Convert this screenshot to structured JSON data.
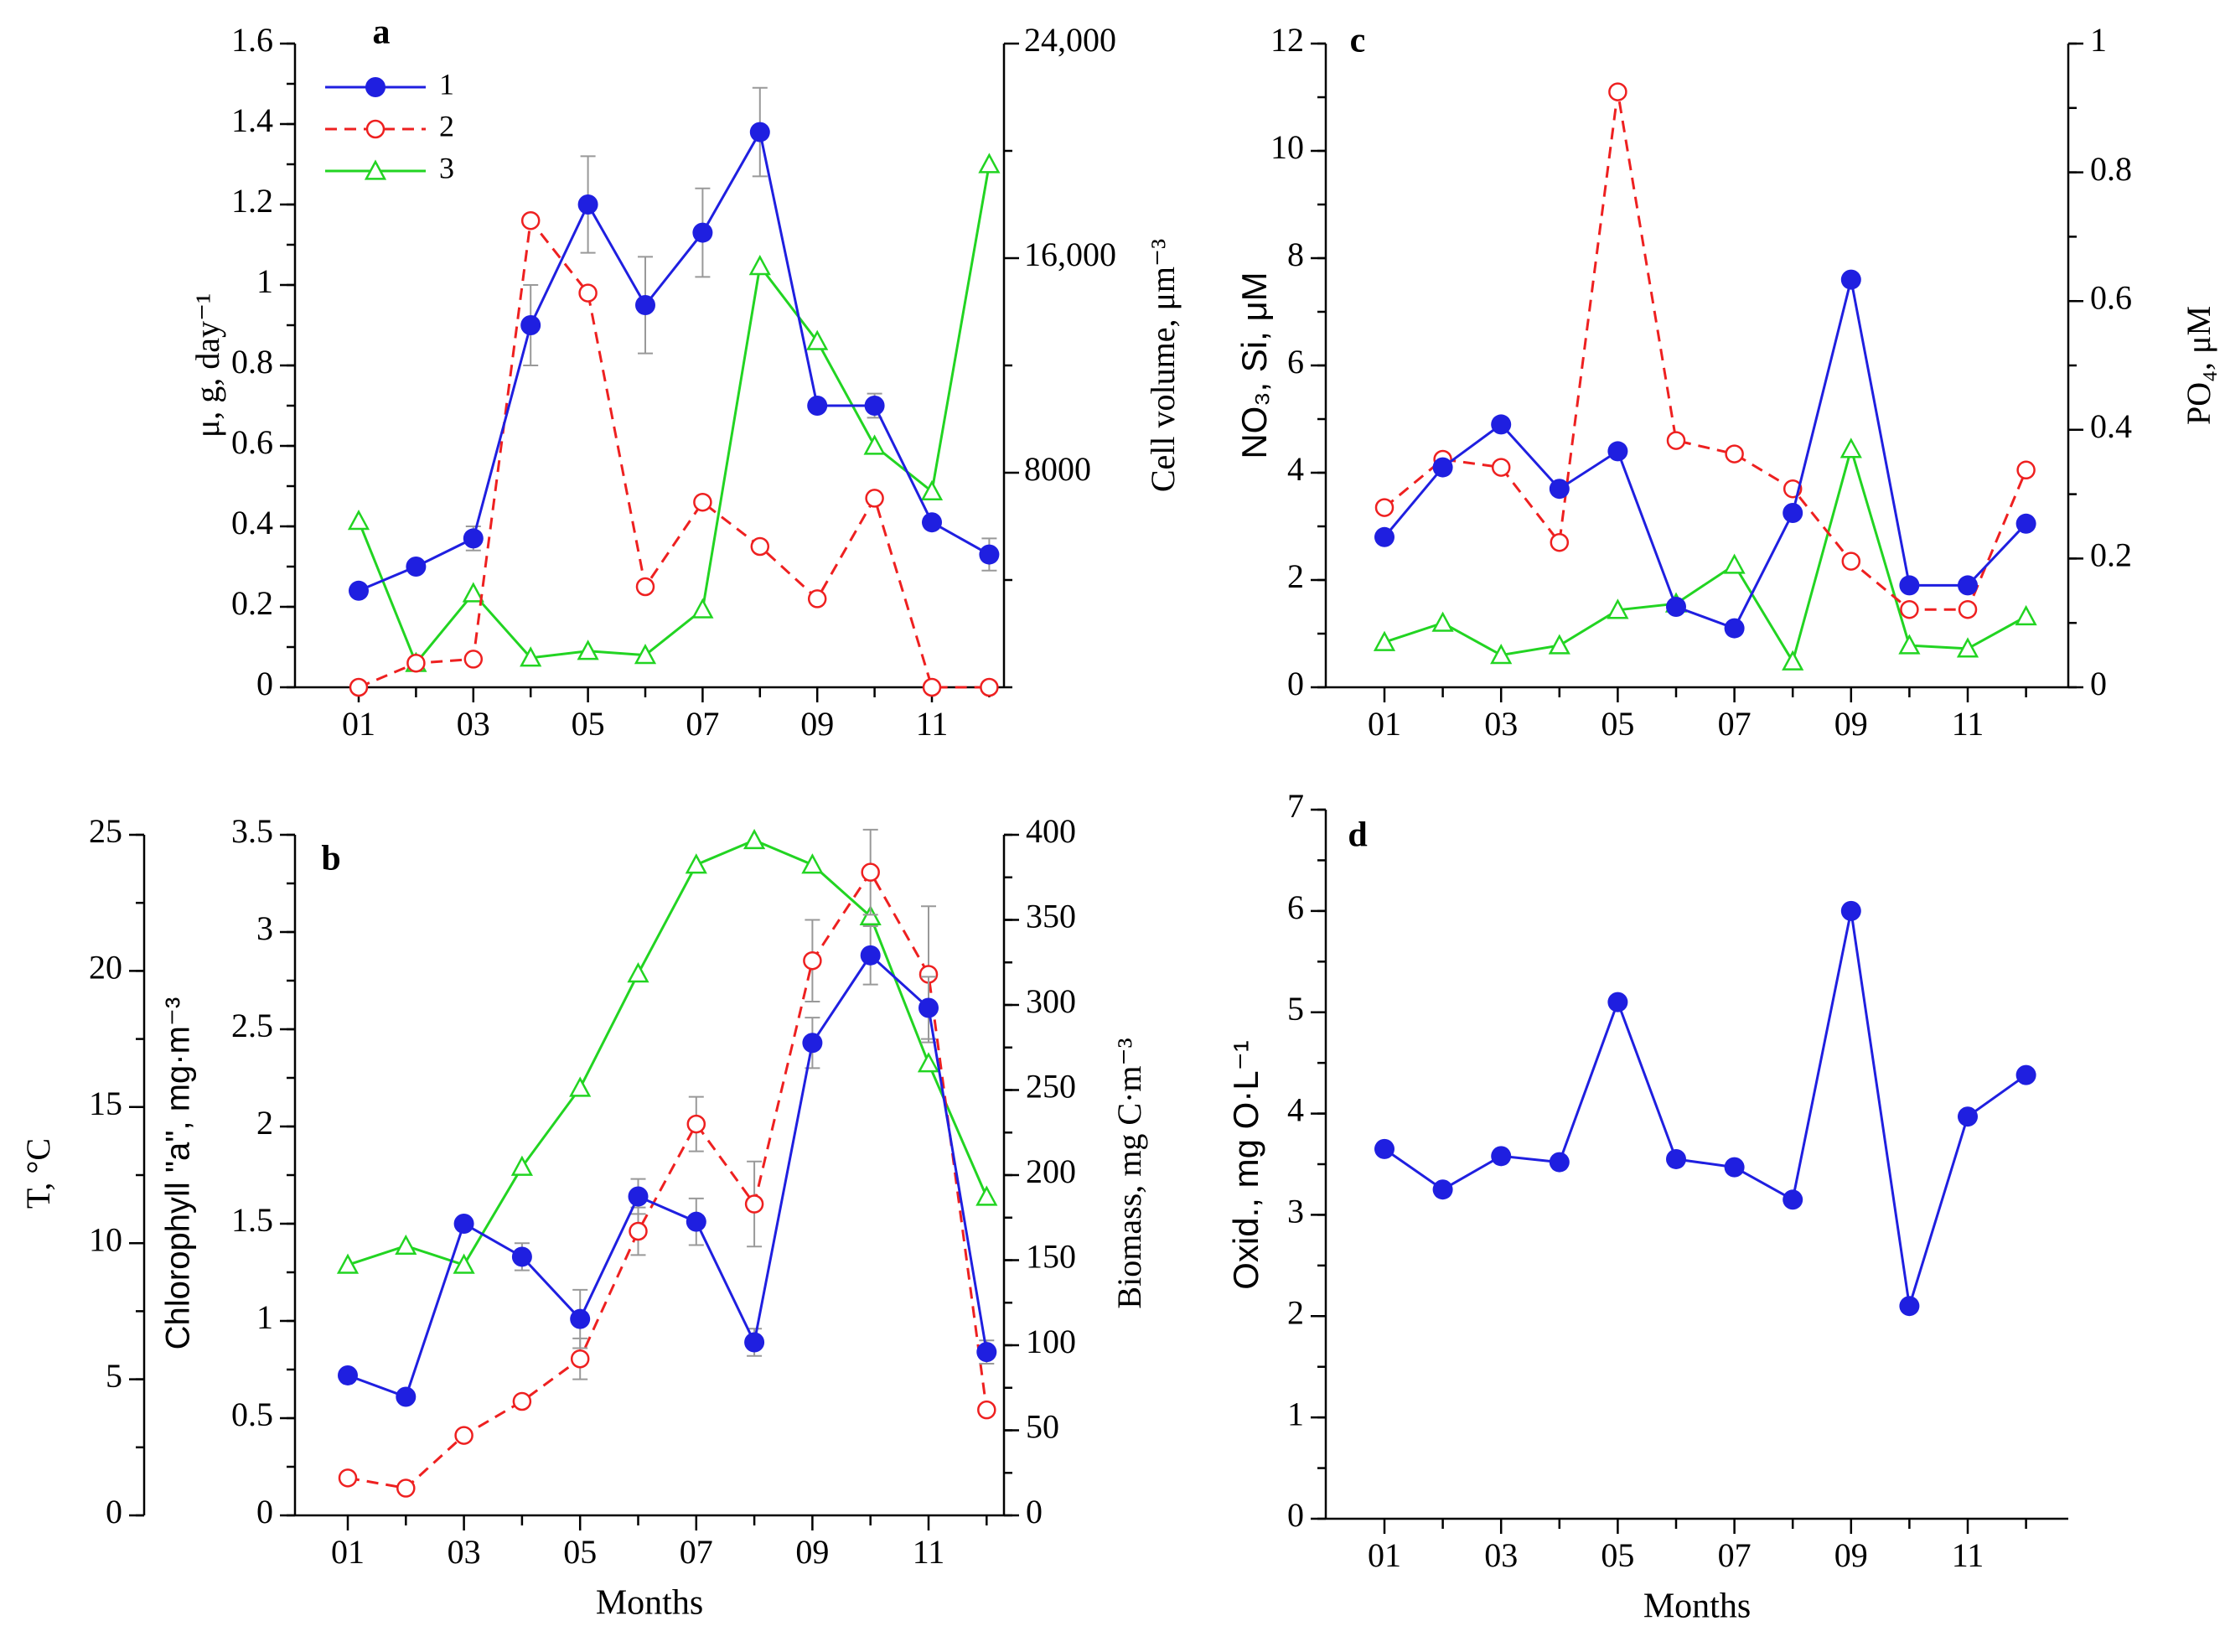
{
  "figure": {
    "panels": [
      "a",
      "b",
      "c",
      "d"
    ]
  },
  "legend": {
    "labels": [
      "1",
      "2",
      "3"
    ]
  },
  "colors": {
    "s1": "#1f1fe0",
    "s2": "#ee2020",
    "s3": "#22d422",
    "axis": "#000000",
    "error": "#999999"
  },
  "chart_data": [
    {
      "panel": "a",
      "type": "line",
      "months": [
        "01",
        "02",
        "03",
        "04",
        "05",
        "06",
        "07",
        "08",
        "09",
        "10",
        "11",
        "12"
      ],
      "xticklabels": [
        "01",
        "03",
        "05",
        "07",
        "09",
        "11"
      ],
      "xlabel": "",
      "left_axis": {
        "label": "μ, g, day⁻¹",
        "ylim": [
          0,
          1.6
        ],
        "ticks": [
          "0",
          "0.2",
          "0.4",
          "0.6",
          "0.8",
          "1",
          "1.2",
          "1.4",
          "1.6"
        ]
      },
      "right_axis": {
        "label": "Cell volume, μm⁻³",
        "ylim": [
          0,
          24000
        ],
        "ticks": [
          "8000",
          "16,000",
          "24,000"
        ]
      },
      "series": [
        {
          "name": "1",
          "axis": "left",
          "values": [
            0.24,
            0.3,
            0.37,
            0.9,
            1.2,
            0.95,
            1.13,
            1.38,
            0.7,
            0.7,
            0.41,
            0.33
          ],
          "errors": [
            0,
            0,
            0.03,
            0.1,
            0.12,
            0.12,
            0.11,
            0.11,
            0,
            0.03,
            0,
            0.04
          ]
        },
        {
          "name": "2",
          "axis": "left",
          "values": [
            0.0,
            0.06,
            0.07,
            1.16,
            0.98,
            0.25,
            0.46,
            0.35,
            0.22,
            0.47,
            0.0,
            0.0
          ]
        },
        {
          "name": "3",
          "axis": "right",
          "values": [
            6200,
            900,
            3500,
            1100,
            1350,
            1200,
            2900,
            15700,
            12900,
            9000,
            7300,
            19500
          ]
        }
      ]
    },
    {
      "panel": "b",
      "type": "line",
      "months": [
        "01",
        "02",
        "03",
        "04",
        "05",
        "06",
        "07",
        "08",
        "09",
        "10",
        "11",
        "12"
      ],
      "xticklabels": [
        "01",
        "03",
        "05",
        "07",
        "09",
        "11"
      ],
      "xlabel": "Months",
      "outer_axis": {
        "label": "T, °C",
        "ylim": [
          0,
          25
        ],
        "ticks": [
          "0",
          "5",
          "10",
          "15",
          "20",
          "25"
        ]
      },
      "left_axis": {
        "label": "Chlorophyll \"a\", mg·m⁻³",
        "ylim": [
          0,
          3.5
        ],
        "ticks": [
          "0",
          "0.5",
          "1",
          "1.5",
          "2",
          "2.5",
          "3",
          "3.5"
        ]
      },
      "right_axis": {
        "label": "Biomass, mg C·m⁻³",
        "ylim": [
          0,
          400
        ],
        "ticks": [
          "0",
          "50",
          "100",
          "150",
          "200",
          "250",
          "300",
          "350",
          "400"
        ]
      },
      "series": [
        {
          "name": "1",
          "axis": "left",
          "values": [
            0.72,
            0.61,
            1.5,
            1.33,
            1.01,
            1.64,
            1.51,
            0.89,
            2.43,
            2.88,
            2.61,
            0.84
          ],
          "errors": [
            0,
            0,
            0,
            0.07,
            0.15,
            0.09,
            0.12,
            0.07,
            0.13,
            0.15,
            0.16,
            0.06
          ]
        },
        {
          "name": "2",
          "axis": "right",
          "values": [
            22,
            16,
            47,
            67,
            92,
            167,
            230,
            183,
            326,
            378,
            318,
            62
          ],
          "errors": [
            0,
            0,
            0,
            0,
            12,
            14,
            16,
            25,
            24,
            25,
            40,
            0
          ]
        },
        {
          "name": "3",
          "axis": "outer",
          "values": [
            9.2,
            9.9,
            9.2,
            12.8,
            15.7,
            19.9,
            23.9,
            24.8,
            23.9,
            22.0,
            16.6,
            11.7
          ]
        }
      ]
    },
    {
      "panel": "c",
      "type": "line",
      "months": [
        "01",
        "02",
        "03",
        "04",
        "05",
        "06",
        "07",
        "08",
        "09",
        "10",
        "11",
        "12"
      ],
      "xticklabels": [
        "01",
        "03",
        "05",
        "07",
        "09",
        "11"
      ],
      "xlabel": "",
      "left_axis": {
        "label": "NO₃, Si, μM",
        "ylim": [
          0,
          12
        ],
        "ticks": [
          "0",
          "2",
          "4",
          "6",
          "8",
          "10",
          "12"
        ]
      },
      "right_axis": {
        "label": "PO₄, μM",
        "ylim": [
          0,
          1
        ],
        "ticks": [
          "0",
          "0.2",
          "0.4",
          "0.6",
          "0.8",
          "1"
        ]
      },
      "series": [
        {
          "name": "1",
          "axis": "left",
          "values": [
            2.8,
            4.1,
            4.9,
            3.7,
            4.4,
            1.5,
            1.1,
            3.25,
            7.6,
            1.9,
            1.9,
            3.05
          ]
        },
        {
          "name": "2",
          "axis": "left",
          "values": [
            3.35,
            4.25,
            4.1,
            2.7,
            11.1,
            4.6,
            4.35,
            3.7,
            2.35,
            1.45,
            1.45,
            4.05
          ]
        },
        {
          "name": "3",
          "axis": "right",
          "values": [
            0.07,
            0.1,
            0.05,
            0.065,
            0.12,
            0.13,
            0.19,
            0.04,
            0.37,
            0.065,
            0.06,
            0.11
          ]
        }
      ]
    },
    {
      "panel": "d",
      "type": "line",
      "months": [
        "01",
        "02",
        "03",
        "04",
        "05",
        "06",
        "07",
        "08",
        "09",
        "10",
        "11",
        "12"
      ],
      "xticklabels": [
        "01",
        "03",
        "05",
        "07",
        "09",
        "11"
      ],
      "xlabel": "Months",
      "left_axis": {
        "label": "Oxid., mg O·L⁻¹",
        "ylim": [
          0,
          7
        ],
        "ticks": [
          "0",
          "1",
          "2",
          "3",
          "4",
          "5",
          "6",
          "7"
        ]
      },
      "series": [
        {
          "name": "1",
          "axis": "left",
          "values": [
            3.65,
            3.25,
            3.58,
            3.52,
            5.1,
            3.55,
            3.47,
            3.15,
            6.0,
            2.1,
            3.97,
            4.38
          ]
        }
      ]
    }
  ]
}
